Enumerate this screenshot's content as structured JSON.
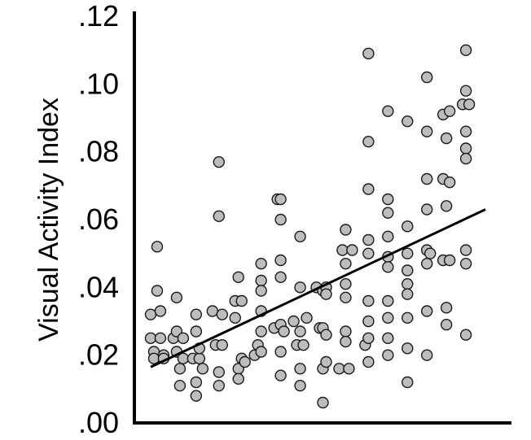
{
  "chart_data": {
    "type": "scatter",
    "title": "",
    "xlabel": "",
    "ylabel": "Visual Activity Index",
    "ylim": [
      0,
      0.12
    ],
    "xlim": [
      0,
      110
    ],
    "y_ticks": [
      ".00",
      ".02",
      ".04",
      ".06",
      ".08",
      ".10",
      ".12"
    ],
    "x_ticks": [],
    "grid": false,
    "legend": "none",
    "point_color": "#bdbdbd",
    "point_edge_color": "#1a1a1a",
    "trendline": {
      "x": [
        2,
        105
      ],
      "y": [
        0.0165,
        0.063
      ]
    },
    "points": [
      {
        "x": 2,
        "y": 0.032
      },
      {
        "x": 2,
        "y": 0.025
      },
      {
        "x": 3,
        "y": 0.021
      },
      {
        "x": 3,
        "y": 0.019
      },
      {
        "x": 4,
        "y": 0.052
      },
      {
        "x": 4,
        "y": 0.039
      },
      {
        "x": 5,
        "y": 0.033
      },
      {
        "x": 5,
        "y": 0.025
      },
      {
        "x": 6,
        "y": 0.02
      },
      {
        "x": 6,
        "y": 0.019
      },
      {
        "x": 9,
        "y": 0.025
      },
      {
        "x": 10,
        "y": 0.037
      },
      {
        "x": 10,
        "y": 0.027
      },
      {
        "x": 10,
        "y": 0.021
      },
      {
        "x": 11,
        "y": 0.011
      },
      {
        "x": 11,
        "y": 0.016
      },
      {
        "x": 12,
        "y": 0.025
      },
      {
        "x": 12,
        "y": 0.019
      },
      {
        "x": 15,
        "y": 0.019
      },
      {
        "x": 16,
        "y": 0.032
      },
      {
        "x": 16,
        "y": 0.027
      },
      {
        "x": 16,
        "y": 0.012
      },
      {
        "x": 16,
        "y": 0.008
      },
      {
        "x": 17,
        "y": 0.019
      },
      {
        "x": 17,
        "y": 0.022
      },
      {
        "x": 18,
        "y": 0.016
      },
      {
        "x": 21,
        "y": 0.033
      },
      {
        "x": 22,
        "y": 0.023
      },
      {
        "x": 23,
        "y": 0.077
      },
      {
        "x": 23,
        "y": 0.061
      },
      {
        "x": 23,
        "y": 0.015
      },
      {
        "x": 23,
        "y": 0.011
      },
      {
        "x": 24,
        "y": 0.032
      },
      {
        "x": 24,
        "y": 0.023
      },
      {
        "x": 28,
        "y": 0.036
      },
      {
        "x": 28,
        "y": 0.031
      },
      {
        "x": 29,
        "y": 0.043
      },
      {
        "x": 29,
        "y": 0.016
      },
      {
        "x": 29,
        "y": 0.013
      },
      {
        "x": 30,
        "y": 0.019
      },
      {
        "x": 30,
        "y": 0.036
      },
      {
        "x": 31,
        "y": 0.018
      },
      {
        "x": 34,
        "y": 0.02
      },
      {
        "x": 35,
        "y": 0.023
      },
      {
        "x": 36,
        "y": 0.047
      },
      {
        "x": 36,
        "y": 0.042
      },
      {
        "x": 36,
        "y": 0.039
      },
      {
        "x": 36,
        "y": 0.033
      },
      {
        "x": 36,
        "y": 0.027
      },
      {
        "x": 36,
        "y": 0.021
      },
      {
        "x": 40,
        "y": 0.028
      },
      {
        "x": 41,
        "y": 0.066
      },
      {
        "x": 42,
        "y": 0.066
      },
      {
        "x": 42,
        "y": 0.06
      },
      {
        "x": 42,
        "y": 0.048
      },
      {
        "x": 42,
        "y": 0.043
      },
      {
        "x": 42,
        "y": 0.029
      },
      {
        "x": 42,
        "y": 0.021
      },
      {
        "x": 42,
        "y": 0.014
      },
      {
        "x": 43,
        "y": 0.027
      },
      {
        "x": 46,
        "y": 0.03
      },
      {
        "x": 47,
        "y": 0.023
      },
      {
        "x": 48,
        "y": 0.055
      },
      {
        "x": 48,
        "y": 0.04
      },
      {
        "x": 48,
        "y": 0.027
      },
      {
        "x": 48,
        "y": 0.016
      },
      {
        "x": 48,
        "y": 0.011
      },
      {
        "x": 49,
        "y": 0.023
      },
      {
        "x": 50,
        "y": 0.031
      },
      {
        "x": 53,
        "y": 0.04
      },
      {
        "x": 54,
        "y": 0.028
      },
      {
        "x": 55,
        "y": 0.039
      },
      {
        "x": 55,
        "y": 0.028
      },
      {
        "x": 55,
        "y": 0.016
      },
      {
        "x": 55,
        "y": 0.006
      },
      {
        "x": 56,
        "y": 0.04
      },
      {
        "x": 56,
        "y": 0.038
      },
      {
        "x": 56,
        "y": 0.026
      },
      {
        "x": 56,
        "y": 0.018
      },
      {
        "x": 60,
        "y": 0.016
      },
      {
        "x": 61,
        "y": 0.051
      },
      {
        "x": 62,
        "y": 0.057
      },
      {
        "x": 62,
        "y": 0.047
      },
      {
        "x": 62,
        "y": 0.041
      },
      {
        "x": 62,
        "y": 0.037
      },
      {
        "x": 62,
        "y": 0.027
      },
      {
        "x": 62,
        "y": 0.024
      },
      {
        "x": 63,
        "y": 0.016
      },
      {
        "x": 64,
        "y": 0.051
      },
      {
        "x": 68,
        "y": 0.023
      },
      {
        "x": 69,
        "y": 0.109
      },
      {
        "x": 69,
        "y": 0.083
      },
      {
        "x": 69,
        "y": 0.069
      },
      {
        "x": 69,
        "y": 0.054
      },
      {
        "x": 69,
        "y": 0.05
      },
      {
        "x": 69,
        "y": 0.036
      },
      {
        "x": 69,
        "y": 0.03
      },
      {
        "x": 69,
        "y": 0.025
      },
      {
        "x": 69,
        "y": 0.018
      },
      {
        "x": 75,
        "y": 0.092
      },
      {
        "x": 75,
        "y": 0.066
      },
      {
        "x": 75,
        "y": 0.062
      },
      {
        "x": 75,
        "y": 0.055
      },
      {
        "x": 75,
        "y": 0.049
      },
      {
        "x": 75,
        "y": 0.046
      },
      {
        "x": 75,
        "y": 0.036
      },
      {
        "x": 75,
        "y": 0.031
      },
      {
        "x": 75,
        "y": 0.025
      },
      {
        "x": 75,
        "y": 0.02
      },
      {
        "x": 81,
        "y": 0.089
      },
      {
        "x": 81,
        "y": 0.058
      },
      {
        "x": 81,
        "y": 0.05
      },
      {
        "x": 81,
        "y": 0.045
      },
      {
        "x": 81,
        "y": 0.041
      },
      {
        "x": 81,
        "y": 0.038
      },
      {
        "x": 81,
        "y": 0.031
      },
      {
        "x": 81,
        "y": 0.022
      },
      {
        "x": 81,
        "y": 0.012
      },
      {
        "x": 87,
        "y": 0.102
      },
      {
        "x": 87,
        "y": 0.086
      },
      {
        "x": 87,
        "y": 0.072
      },
      {
        "x": 87,
        "y": 0.063
      },
      {
        "x": 87,
        "y": 0.051
      },
      {
        "x": 87,
        "y": 0.047
      },
      {
        "x": 87,
        "y": 0.033
      },
      {
        "x": 87,
        "y": 0.02
      },
      {
        "x": 88,
        "y": 0.05
      },
      {
        "x": 92,
        "y": 0.091
      },
      {
        "x": 92,
        "y": 0.072
      },
      {
        "x": 92,
        "y": 0.048
      },
      {
        "x": 93,
        "y": 0.084
      },
      {
        "x": 93,
        "y": 0.064
      },
      {
        "x": 93,
        "y": 0.034
      },
      {
        "x": 93,
        "y": 0.029
      },
      {
        "x": 94,
        "y": 0.092
      },
      {
        "x": 94,
        "y": 0.071
      },
      {
        "x": 94,
        "y": 0.048
      },
      {
        "x": 99,
        "y": 0.11
      },
      {
        "x": 99,
        "y": 0.098
      },
      {
        "x": 99,
        "y": 0.086
      },
      {
        "x": 99,
        "y": 0.081
      },
      {
        "x": 99,
        "y": 0.078
      },
      {
        "x": 99,
        "y": 0.051
      },
      {
        "x": 99,
        "y": 0.047
      },
      {
        "x": 99,
        "y": 0.026
      },
      {
        "x": 98,
        "y": 0.094
      },
      {
        "x": 100,
        "y": 0.094
      }
    ]
  }
}
